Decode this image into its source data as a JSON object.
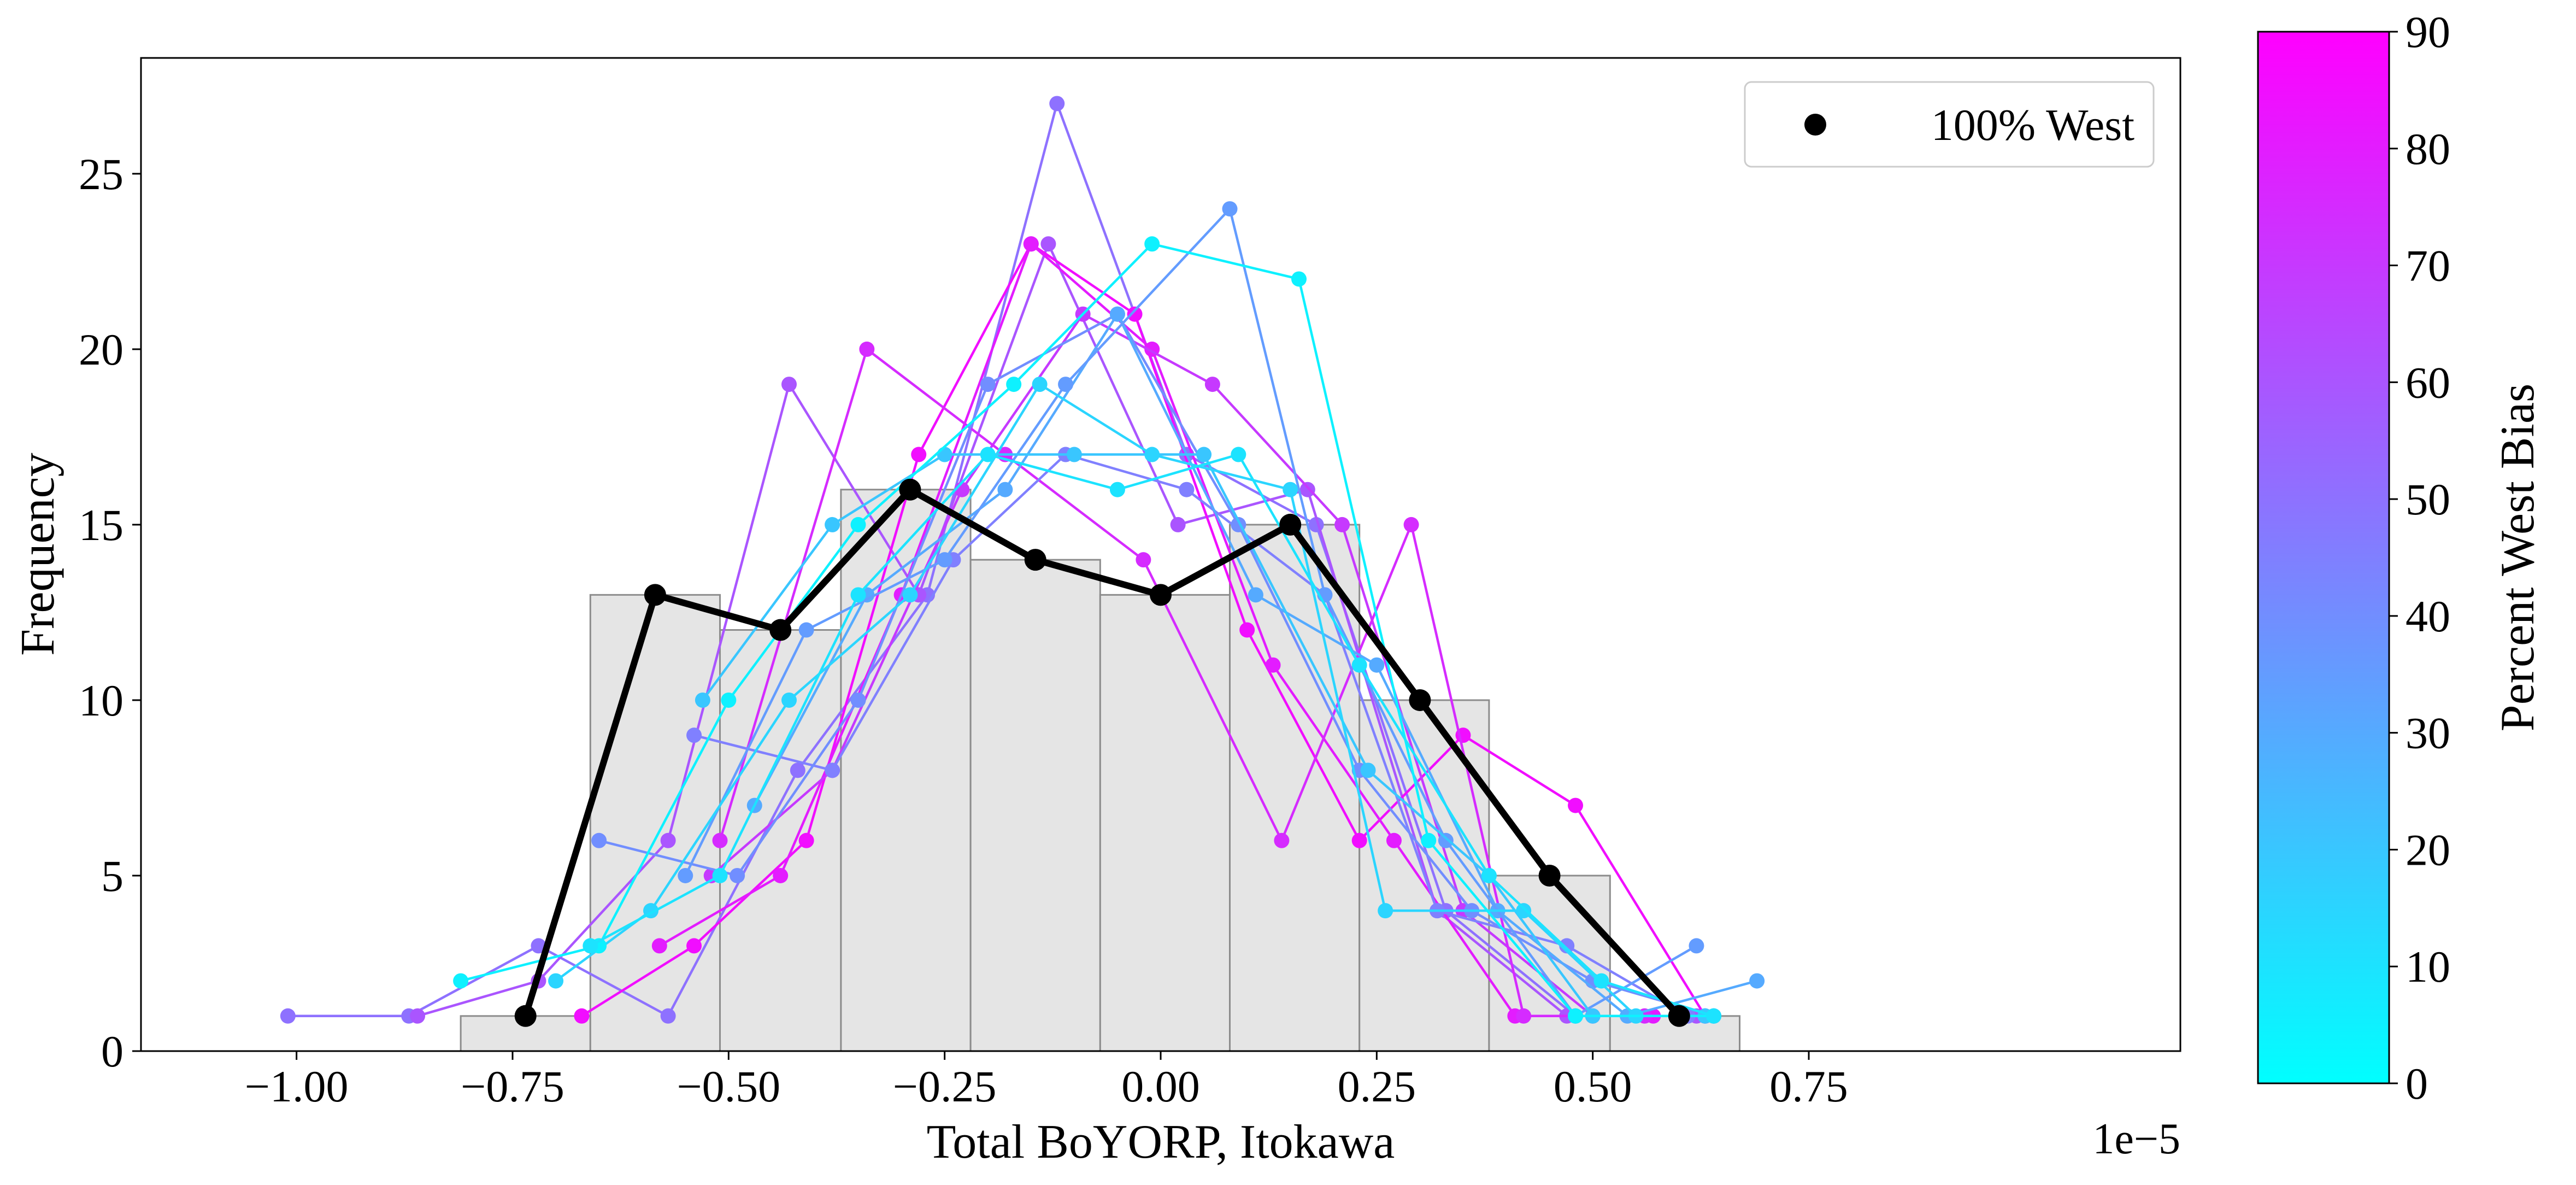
{
  "chart_data": {
    "type": "line",
    "xlabel": "Total BoYORP, Itokawa",
    "ylabel": "Frequency",
    "x_scale_label": "1e−5",
    "xlim": [
      -1.18,
      1.18
    ],
    "ylim": [
      0,
      28.3
    ],
    "x_ticks": [
      -1.0,
      -0.75,
      -0.5,
      -0.25,
      0.0,
      0.25,
      0.5,
      0.75
    ],
    "x_tick_labels": [
      "−1.00",
      "−0.75",
      "−0.50",
      "−0.25",
      "0.00",
      "0.25",
      "0.50",
      "0.75"
    ],
    "y_ticks": [
      0,
      5,
      10,
      15,
      20,
      25
    ],
    "y_tick_labels": [
      "0",
      "5",
      "10",
      "15",
      "20",
      "25"
    ],
    "grid": false,
    "legend": {
      "position": "top-right",
      "entries": [
        {
          "label": "100% West",
          "color": "#000000",
          "marker": "circle"
        }
      ]
    },
    "colorbar": {
      "label": "Percent West Bias",
      "min": 0,
      "max": 90,
      "ticks": [
        0,
        10,
        20,
        30,
        40,
        50,
        60,
        70,
        80,
        90
      ],
      "tick_labels": [
        "0",
        "10",
        "20",
        "30",
        "40",
        "50",
        "60",
        "70",
        "80",
        "90"
      ],
      "colormap": "cool",
      "color_low": "#00ffff",
      "color_high": "#ff00ff"
    },
    "histogram": {
      "bin_edges": [
        -0.81,
        -0.66,
        -0.51,
        -0.37,
        -0.22,
        -0.07,
        0.08,
        0.23,
        0.38,
        0.52,
        0.67
      ],
      "counts": [
        1,
        13,
        12,
        16,
        14,
        13,
        15,
        10,
        5,
        1
      ],
      "color": "#e5e5e5",
      "edge_color": "#8c8c8c"
    },
    "highlight_series": {
      "name": "100% West",
      "color": "#000000",
      "x": [
        -0.735,
        -0.585,
        -0.44,
        -0.29,
        -0.145,
        0.0,
        0.15,
        0.3,
        0.45,
        0.6
      ],
      "y": [
        1,
        13,
        12,
        16,
        14,
        13,
        15,
        10,
        5,
        1
      ]
    },
    "series": [
      {
        "bias": 50,
        "x": [
          -1.01,
          -0.87,
          -0.72,
          -0.57,
          -0.42,
          -0.27,
          -0.12,
          0.03,
          0.18,
          0.33,
          0.48,
          0.63
        ],
        "y": [
          1,
          1,
          3,
          1,
          8,
          13,
          27,
          17,
          15,
          4,
          1,
          1
        ]
      },
      {
        "bias": 60,
        "x": [
          -0.86,
          -0.72,
          -0.57,
          -0.43,
          -0.28,
          -0.13,
          0.02,
          0.17,
          0.32,
          0.47,
          0.62
        ],
        "y": [
          1,
          2,
          6,
          19,
          13,
          23,
          15,
          16,
          4,
          1,
          1
        ]
      },
      {
        "bias": 85,
        "x": [
          -0.67,
          -0.54,
          -0.41,
          -0.28,
          -0.15,
          -0.03,
          0.1,
          0.23,
          0.35,
          0.48,
          0.63
        ],
        "y": [
          1,
          3,
          6,
          17,
          23,
          21,
          12,
          6,
          9,
          7,
          1
        ]
      },
      {
        "bias": 80,
        "x": [
          -0.58,
          -0.44,
          -0.3,
          -0.15,
          -0.01,
          0.13,
          0.27,
          0.41,
          0.57
        ],
        "y": [
          3,
          5,
          13,
          23,
          20,
          11,
          6,
          1,
          1
        ]
      },
      {
        "bias": 70,
        "x": [
          -0.52,
          -0.38,
          -0.23,
          -0.09,
          0.06,
          0.21,
          0.35,
          0.5,
          0.64
        ],
        "y": [
          5,
          8,
          16,
          21,
          19,
          15,
          4,
          1,
          1
        ]
      },
      {
        "bias": 75,
        "x": [
          -0.51,
          -0.34,
          -0.18,
          -0.02,
          0.14,
          0.29,
          0.42,
          0.56
        ],
        "y": [
          6,
          20,
          17,
          14,
          6,
          15,
          1,
          1
        ]
      },
      {
        "bias": 45,
        "x": [
          -0.54,
          -0.38,
          -0.24,
          -0.11,
          0.03,
          0.19,
          0.32,
          0.47,
          0.61
        ],
        "y": [
          9,
          8,
          14,
          17,
          16,
          13,
          4,
          3,
          1
        ]
      },
      {
        "bias": 40,
        "x": [
          -0.65,
          -0.49,
          -0.35,
          -0.2,
          -0.05,
          0.09,
          0.23,
          0.36,
          0.5,
          0.64
        ],
        "y": [
          6,
          5,
          10,
          19,
          21,
          15,
          8,
          4,
          2,
          1
        ]
      },
      {
        "bias": 30,
        "x": [
          -0.47,
          -0.34,
          -0.18,
          -0.05,
          0.11,
          0.25,
          0.39,
          0.54,
          0.69
        ],
        "y": [
          7,
          13,
          16,
          21,
          13,
          11,
          4,
          1,
          2
        ]
      },
      {
        "bias": 35,
        "x": [
          -0.55,
          -0.41,
          -0.25,
          -0.11,
          0.08,
          0.19,
          0.33,
          0.48,
          0.62
        ],
        "y": [
          5,
          12,
          14,
          19,
          24,
          13,
          6,
          1,
          3
        ]
      },
      {
        "bias": 20,
        "x": [
          -0.53,
          -0.38,
          -0.25,
          -0.1,
          0.05,
          0.24,
          0.38,
          0.5,
          0.63
        ],
        "y": [
          10,
          15,
          17,
          17,
          17,
          8,
          5,
          1,
          1
        ]
      },
      {
        "bias": 15,
        "x": [
          -0.7,
          -0.59,
          -0.43,
          -0.29,
          -0.14,
          -0.01,
          0.15,
          0.26,
          0.42,
          0.55
        ],
        "y": [
          2,
          4,
          10,
          13,
          19,
          17,
          16,
          4,
          4,
          1
        ]
      },
      {
        "bias": 5,
        "x": [
          -0.81,
          -0.65,
          -0.5,
          -0.35,
          -0.17,
          -0.01,
          0.16,
          0.31,
          0.48,
          0.64
        ],
        "y": [
          2,
          3,
          10,
          15,
          19,
          23,
          22,
          6,
          1,
          1
        ]
      },
      {
        "bias": 10,
        "x": [
          -0.66,
          -0.51,
          -0.35,
          -0.2,
          -0.05,
          0.09,
          0.23,
          0.38,
          0.51,
          0.64
        ],
        "y": [
          3,
          5,
          13,
          17,
          16,
          17,
          11,
          5,
          2,
          1
        ]
      }
    ]
  }
}
